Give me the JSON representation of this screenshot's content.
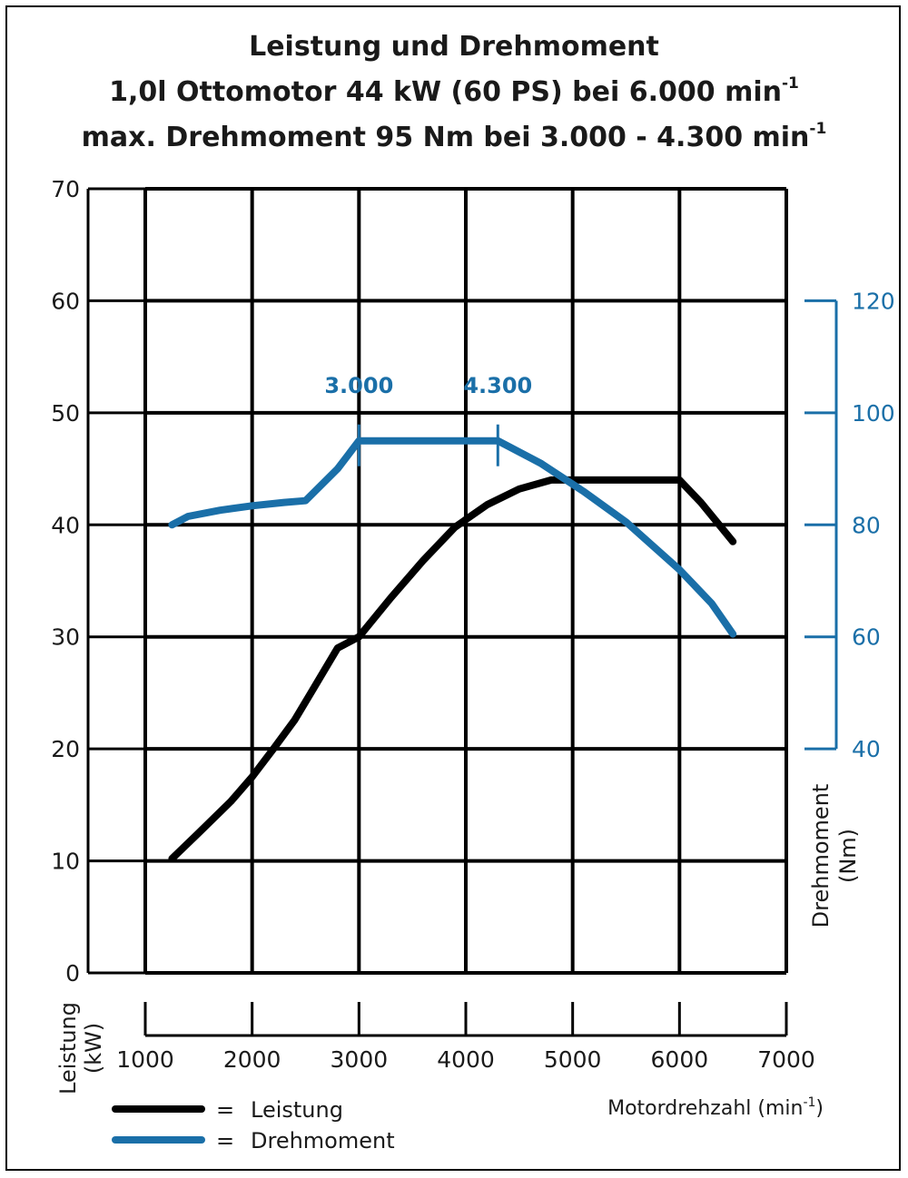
{
  "chart_data": {
    "type": "line",
    "title": "Leistung und Drehmoment",
    "subtitle_prefix": "1,0l Ottomotor 44 kW (60 PS) bei 6.000 min",
    "subtitle_sup": "-1",
    "subtitle2_prefix": "max. Drehmoment 95 Nm bei 3.000 - 4.300 min",
    "subtitle2_sup": "-1",
    "xlabel": "Motordrehzahl (min",
    "xlabel_sup": "-1",
    "xlabel_suffix": ")",
    "ylabel_left": "Leistung (kW)",
    "ylabel_left_l1": "Leistung",
    "ylabel_left_l2": "(kW)",
    "ylabel_right_l1": "Drehmoment",
    "ylabel_right_l2": "(Nm)",
    "xlim": [
      1000,
      7000
    ],
    "ylim_left": [
      0,
      70
    ],
    "ylim_right": [
      40,
      120
    ],
    "x_ticks": [
      "1000",
      "2000",
      "3000",
      "4000",
      "5000",
      "6000",
      "7000"
    ],
    "x_tick_values": [
      1000,
      2000,
      3000,
      4000,
      5000,
      6000,
      7000
    ],
    "y_ticks_left": [
      "0",
      "10",
      "20",
      "30",
      "40",
      "50",
      "60",
      "70"
    ],
    "y_tick_values_left": [
      0,
      10,
      20,
      30,
      40,
      50,
      60,
      70
    ],
    "y_ticks_right": [
      "40",
      "60",
      "80",
      "100",
      "120"
    ],
    "y_tick_values_right": [
      40,
      60,
      80,
      100,
      120
    ],
    "annotations": [
      {
        "text": "3.000",
        "x": 3000
      },
      {
        "text": "4.300",
        "x": 4300
      }
    ],
    "series": [
      {
        "name": "Leistung",
        "axis": "left",
        "color": "#000000",
        "x": [
          1250,
          1500,
          1800,
          2000,
          2200,
          2400,
          2600,
          2800,
          3000,
          3300,
          3600,
          3900,
          4200,
          4500,
          4800,
          5000,
          5500,
          6000,
          6200,
          6500
        ],
        "values": [
          10.2,
          12.5,
          15.3,
          17.5,
          20.0,
          22.6,
          25.8,
          29.0,
          30.0,
          33.5,
          36.8,
          39.8,
          41.8,
          43.2,
          44.0,
          44.0,
          44.0,
          44.0,
          42.0,
          38.5
        ]
      },
      {
        "name": "Drehmoment",
        "axis": "right",
        "color": "#1a6fa8",
        "x": [
          1250,
          1400,
          1700,
          2000,
          2300,
          2500,
          2800,
          3000,
          3500,
          4000,
          4300,
          4700,
          5100,
          5500,
          6000,
          6300,
          6500
        ],
        "values": [
          80.0,
          81.5,
          82.6,
          83.4,
          84.0,
          84.3,
          90.0,
          95.0,
          95.0,
          95.0,
          95.0,
          91.0,
          86.0,
          80.5,
          72.0,
          66.0,
          60.5
        ]
      }
    ],
    "legend": [
      {
        "label": "Leistung",
        "color": "#000000"
      },
      {
        "label": "Drehmoment",
        "color": "#1a6fa8"
      }
    ],
    "legend_separator": "=",
    "grid": true
  }
}
